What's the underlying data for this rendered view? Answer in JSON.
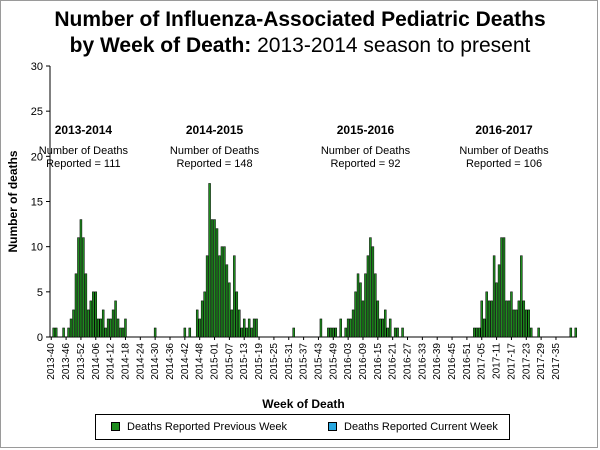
{
  "title": {
    "line1": "Number of Influenza-Associated Pediatric Deaths",
    "line2_bold": "by Week of Death:",
    "line2_normal": " 2013-2014 season to present"
  },
  "chart_data": {
    "type": "bar",
    "title": "Number of Influenza-Associated Pediatric Deaths by Week of Death: 2013-2014 season to present",
    "xlabel": "Week of Death",
    "ylabel": "Number of deaths",
    "ylim": [
      0,
      30
    ],
    "yticks": [
      0,
      5,
      10,
      15,
      20,
      25,
      30
    ],
    "xtick_labels": [
      "2013-40",
      "2013-46",
      "2013-52",
      "2014-06",
      "2014-12",
      "2014-18",
      "2014-24",
      "2014-30",
      "2014-36",
      "2014-42",
      "2014-48",
      "2015-01",
      "2015-07",
      "2015-13",
      "2015-19",
      "2015-25",
      "2015-31",
      "2015-37",
      "2015-43",
      "2015-49",
      "2016-03",
      "2016-09",
      "2016-15",
      "2016-21",
      "2016-27",
      "2016-33",
      "2016-39",
      "2016-45",
      "2016-51",
      "2017-05",
      "2017-11",
      "2017-17",
      "2017-23",
      "2017-29",
      "2017-35"
    ],
    "weeks_per_tick": 6,
    "grid": false,
    "legend_position": "bottom",
    "series": [
      {
        "name": "Deaths Reported Previous Week",
        "color": "#1e8c1e",
        "values": [
          0,
          1,
          1,
          0,
          0,
          1,
          0,
          1,
          2,
          3,
          7,
          11,
          13,
          11,
          7,
          3,
          4,
          5,
          5,
          2,
          2,
          3,
          1,
          2,
          2,
          3,
          4,
          2,
          1,
          1,
          2,
          0,
          0,
          0,
          0,
          0,
          0,
          0,
          0,
          0,
          0,
          0,
          1,
          0,
          0,
          0,
          0,
          0,
          0,
          0,
          0,
          0,
          0,
          0,
          1,
          0,
          1,
          0,
          0,
          3,
          2,
          4,
          5,
          9,
          17,
          13,
          13,
          12,
          9,
          10,
          10,
          8,
          6,
          3,
          9,
          5,
          3,
          1,
          2,
          1,
          2,
          1,
          2,
          2,
          0,
          0,
          0,
          0,
          0,
          0,
          0,
          0,
          0,
          0,
          0,
          0,
          0,
          0,
          1,
          0,
          0,
          0,
          0,
          0,
          0,
          0,
          0,
          0,
          0,
          2,
          0,
          0,
          1,
          1,
          1,
          1,
          0,
          2,
          0,
          1,
          2,
          2,
          3,
          5,
          7,
          6,
          4,
          7,
          9,
          11,
          10,
          7,
          4,
          2,
          2,
          3,
          1,
          2,
          0,
          1,
          1,
          0,
          1,
          0,
          0,
          0,
          0,
          0,
          0,
          0,
          0,
          0,
          0,
          0,
          0,
          0,
          0,
          0,
          0,
          0,
          0,
          0,
          0,
          0,
          0,
          0,
          0,
          0,
          0,
          0,
          0,
          1,
          1,
          1,
          4,
          2,
          5,
          4,
          4,
          9,
          6,
          8,
          11,
          11,
          4,
          4,
          5,
          3,
          3,
          4,
          9,
          4,
          3,
          3,
          1,
          0,
          0,
          1,
          0,
          0,
          0,
          0,
          0,
          0,
          0,
          0,
          0,
          0,
          0,
          0,
          1,
          0,
          1
        ]
      },
      {
        "name": "Deaths Reported Current Week",
        "color": "#29a8e0",
        "values": []
      }
    ],
    "annotations": [
      {
        "season": "2013-2014",
        "line1": "Number of Deaths",
        "line2": "Reported = 111",
        "center_week_index": 13
      },
      {
        "season": "2014-2015",
        "line1": "Number of Deaths",
        "line2": "Reported = 148",
        "center_week_index": 66
      },
      {
        "season": "2015-2016",
        "line1": "Number of Deaths",
        "line2": "Reported = 92",
        "center_week_index": 127
      },
      {
        "season": "2016-2017",
        "line1": "Number of Deaths",
        "line2": "Reported = 106",
        "center_week_index": 183
      }
    ]
  }
}
